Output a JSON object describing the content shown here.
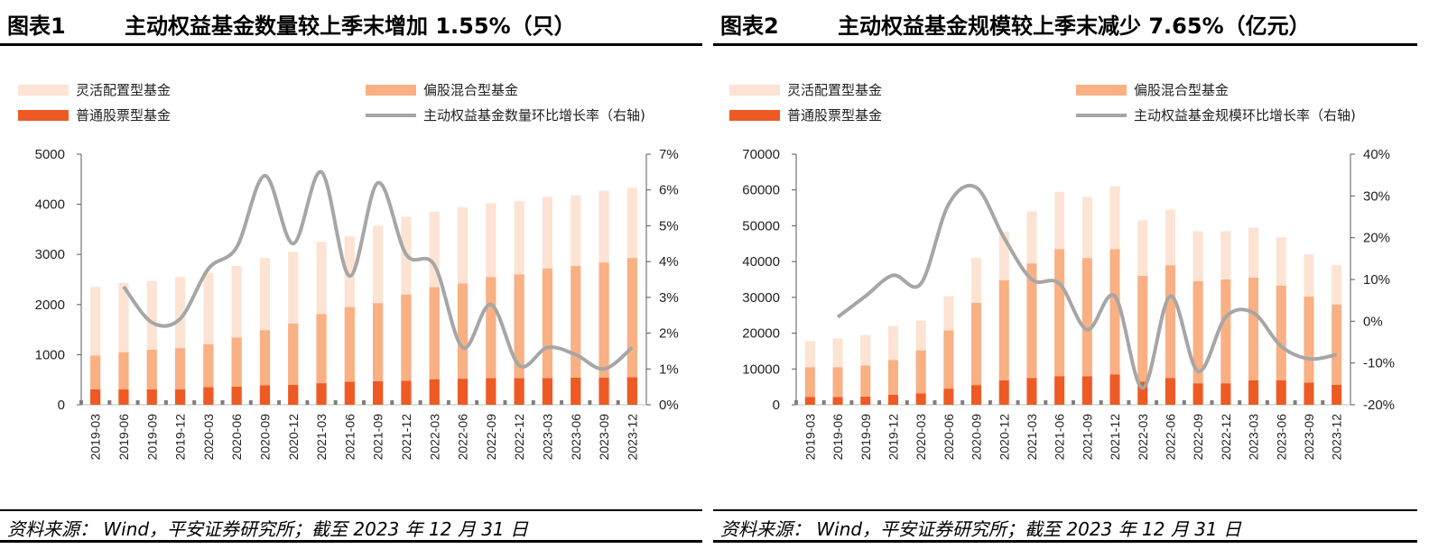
{
  "colors": {
    "flexible": "#FDE3D3",
    "partial": "#F9B083",
    "stock": "#EE5A24",
    "line": "#A6A6A6",
    "axis": "#595959"
  },
  "panels": [
    {
      "id": "p1",
      "title_num": "图表1",
      "title_text": "主动权益基金数量较上季末增加 1.55%（只）",
      "source": "资料来源：  Wind，平安证券研究所；截至 2023 年 12 月 31 日",
      "legend": [
        "灵活配置型基金",
        "偏股混合型基金",
        "普通股票型基金",
        "主动权益基金数量环比增长率（右轴)"
      ],
      "left_ticks": [
        "5000",
        "4000",
        "3000",
        "2000",
        "1000",
        "0"
      ],
      "right_ticks": [
        "7%",
        "6%",
        "5%",
        "4%",
        "3%",
        "2%",
        "1%",
        "0%"
      ],
      "chart_data": {
        "type": "bar",
        "stacked": true,
        "categories": [
          "2019-03",
          "2019-06",
          "2019-09",
          "2019-12",
          "2020-03",
          "2020-06",
          "2020-09",
          "2020-12",
          "2021-03",
          "2021-06",
          "2021-09",
          "2021-12",
          "2022-03",
          "2022-06",
          "2022-09",
          "2022-12",
          "2023-03",
          "2023-06",
          "2023-09",
          "2023-12"
        ],
        "series": [
          {
            "name": "普通股票型基金",
            "type": "bar",
            "axis": "left",
            "values": [
              310,
              310,
              310,
              310,
              350,
              360,
              390,
              400,
              430,
              460,
              470,
              480,
              510,
              520,
              530,
              530,
              530,
              540,
              540,
              550
            ]
          },
          {
            "name": "偏股混合型基金",
            "type": "bar",
            "axis": "left",
            "values": [
              670,
              740,
              790,
              820,
              860,
              980,
              1100,
              1220,
              1380,
              1490,
              1560,
              1720,
              1840,
              1900,
              2020,
              2070,
              2190,
              2230,
              2300,
              2380
            ]
          },
          {
            "name": "灵活配置型基金",
            "type": "bar",
            "axis": "left",
            "values": [
              1370,
              1380,
              1370,
              1420,
              1420,
              1430,
              1440,
              1430,
              1440,
              1410,
              1540,
              1550,
              1500,
              1520,
              1470,
              1460,
              1430,
              1410,
              1430,
              1400
            ]
          },
          {
            "name": "主动权益基金数量环比增长率（右轴)",
            "type": "line",
            "axis": "right",
            "unit": "%",
            "values": [
              null,
              3.3,
              2.3,
              2.4,
              3.8,
              4.4,
              6.4,
              4.5,
              6.5,
              3.6,
              6.2,
              4.2,
              3.9,
              1.6,
              2.8,
              1.1,
              1.6,
              1.4,
              1.0,
              1.6
            ]
          }
        ],
        "ylim": [
          0,
          5000
        ],
        "y2lim": [
          0,
          7
        ],
        "xlabel": "",
        "ylabel": "",
        "legend_position": "top",
        "grid": false
      }
    },
    {
      "id": "p2",
      "title_num": "图表2",
      "title_text": "主动权益基金规模较上季末减少 7.65%（亿元）",
      "source": "资料来源：  Wind，平安证券研究所；截至 2023 年 12 月 31 日",
      "legend": [
        "灵活配置型基金",
        "偏股混合型基金",
        "普通股票型基金",
        "主动权益基金规模环比增长率（右轴)"
      ],
      "left_ticks": [
        "70000",
        "60000",
        "50000",
        "40000",
        "30000",
        "20000",
        "10000",
        "0"
      ],
      "right_ticks": [
        "40%",
        "30%",
        "20%",
        "10%",
        "0%",
        "-10%",
        "-20%"
      ],
      "chart_data": {
        "type": "bar",
        "stacked": true,
        "categories": [
          "2019-03",
          "2019-06",
          "2019-09",
          "2019-12",
          "2020-03",
          "2020-06",
          "2020-09",
          "2020-12",
          "2021-03",
          "2021-06",
          "2021-09",
          "2021-12",
          "2022-03",
          "2022-06",
          "2022-09",
          "2022-12",
          "2023-03",
          "2023-06",
          "2023-09",
          "2023-12"
        ],
        "series": [
          {
            "name": "普通股票型基金",
            "type": "bar",
            "axis": "left",
            "values": [
              2200,
              2200,
              2300,
              2800,
              3200,
              4500,
              5500,
              6800,
              7500,
              8000,
              8000,
              8500,
              6500,
              7500,
              6000,
              6000,
              6800,
              6800,
              6200,
              5600
            ]
          },
          {
            "name": "偏股混合型基金",
            "type": "bar",
            "axis": "left",
            "values": [
              8300,
              8300,
              8700,
              9700,
              12000,
              16300,
              23000,
              28000,
              32000,
              35500,
              33000,
              35000,
              29500,
              31500,
              28500,
              29000,
              28700,
              26500,
              24000,
              22400
            ]
          },
          {
            "name": "灵活配置型基金",
            "type": "bar",
            "axis": "left",
            "values": [
              7300,
              8000,
              8500,
              9500,
              8300,
              9500,
              12500,
              13500,
              14500,
              16000,
              17000,
              17500,
              15500,
              15500,
              14000,
              13500,
              14000,
              13500,
              11800,
              11000
            ]
          },
          {
            "name": "主动权益基金规模环比增长率（右轴)",
            "type": "line",
            "axis": "right",
            "unit": "%",
            "values": [
              null,
              1,
              6,
              11,
              9,
              28,
              32,
              20,
              10,
              9,
              -2,
              6,
              -16,
              6,
              -12,
              1,
              2,
              -6,
              -9,
              -8
            ]
          }
        ],
        "ylim": [
          0,
          70000
        ],
        "y2lim": [
          -20,
          40
        ],
        "xlabel": "",
        "ylabel": "",
        "legend_position": "top",
        "grid": false
      }
    }
  ]
}
